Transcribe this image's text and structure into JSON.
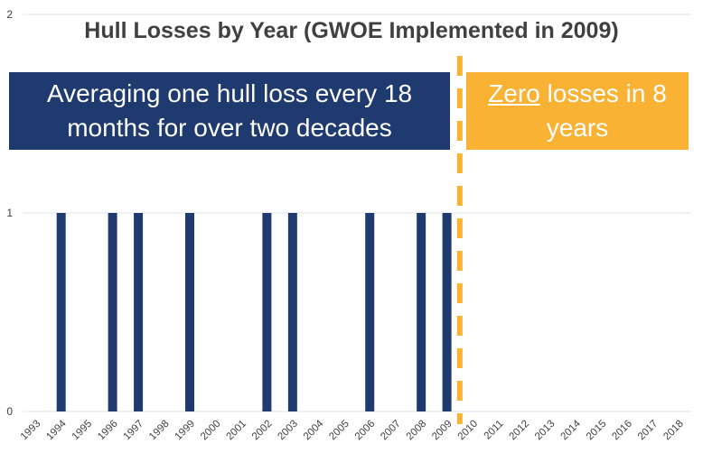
{
  "chart_data": {
    "type": "bar",
    "title": "Hull Losses by Year (GWOE Implemented in 2009)",
    "categories": [
      "1993",
      "1994",
      "1995",
      "1996",
      "1997",
      "1998",
      "1999",
      "2000",
      "2001",
      "2002",
      "2003",
      "2004",
      "2005",
      "2006",
      "2007",
      "2008",
      "2009",
      "2010",
      "2011",
      "2012",
      "2013",
      "2014",
      "2015",
      "2016",
      "2017",
      "2018"
    ],
    "values": [
      0,
      1,
      0,
      1,
      1,
      0,
      1,
      0,
      0,
      1,
      1,
      0,
      0,
      1,
      0,
      1,
      1,
      0,
      0,
      0,
      0,
      0,
      0,
      0,
      0,
      0
    ],
    "yticks": [
      "0",
      "1",
      "2"
    ],
    "ylim": [
      0,
      2
    ],
    "xlabel": "",
    "ylabel": "",
    "grid": true,
    "divider_after": "2009",
    "colors": {
      "bar": "#1f3a6e",
      "divider": "#f9b233",
      "grid": "#d9e3f0"
    }
  },
  "annotations": {
    "left_box": "Averaging one hull loss every 18 months for over two decades",
    "right_box_emphasis": "Zero",
    "right_box_rest": " losses in 8 years"
  }
}
